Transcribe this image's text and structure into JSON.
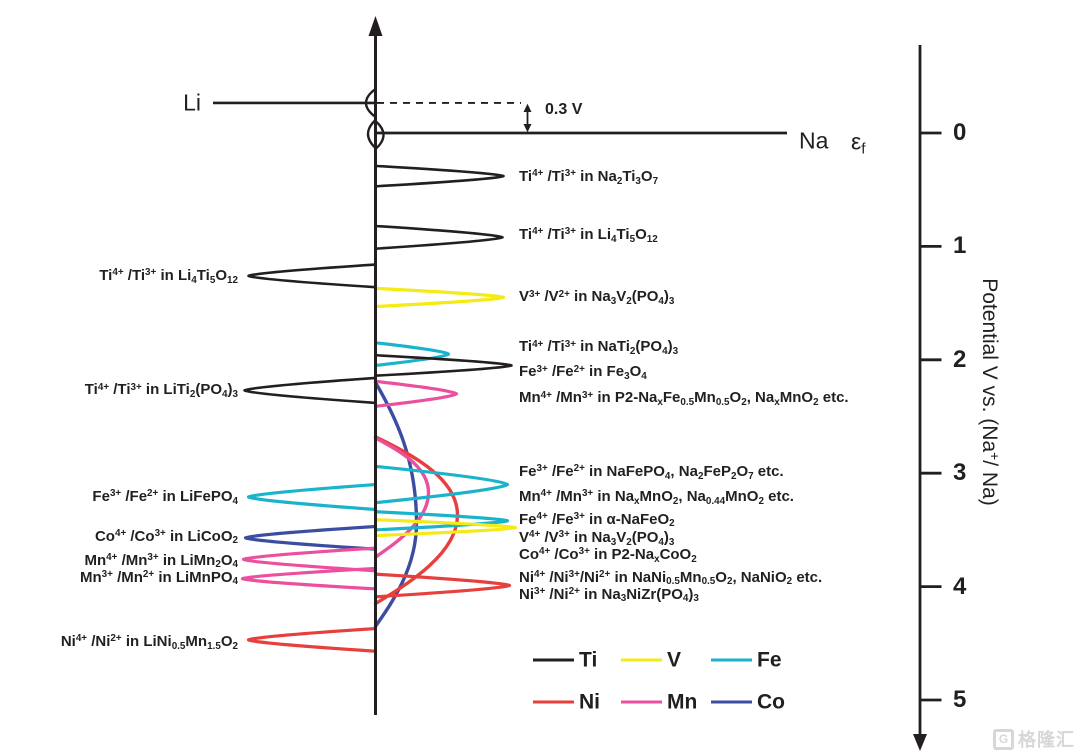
{
  "figure": {
    "anodes": {
      "li_label": "Li",
      "na_label": "Na",
      "fermi_label": "ε[f]",
      "offset_label": "0.3 V",
      "li_v": -0.265,
      "na_v": 0
    },
    "right_axis": {
      "title": "Potential V vs. (Na{+}/ Na)",
      "ticks": [
        0,
        1,
        2,
        3,
        4,
        5
      ]
    },
    "colors": {
      "Ti": "#231f20",
      "V": "#f3eb13",
      "Fe": "#1ab3cc",
      "Ni": "#e73f3c",
      "Mn": "#ec4f9d",
      "Co": "#3c4da1"
    },
    "legend": {
      "rows": [
        [
          "Ti",
          "V",
          "Fe"
        ],
        [
          "Ni",
          "Mn",
          "Co"
        ]
      ]
    },
    "watermark": {
      "logo": "G",
      "text": "格隆汇"
    }
  },
  "chart_data": {
    "type": "line",
    "title": "Relative redox energy levels of electrode materials vs. potential",
    "ylabel": "Potential V vs. (Na+/Na)",
    "y_range": [
      0,
      5
    ],
    "y_direction": "down",
    "li_na_offset_V": 0.3,
    "legend_entries": [
      "Ti",
      "V",
      "Fe",
      "Ni",
      "Mn",
      "Co"
    ],
    "peaks": [
      {
        "side": "left",
        "element": "Ti",
        "v": 1.26,
        "hw": 0.1,
        "amp": 127
      },
      {
        "side": "left",
        "element": "Ti",
        "v": 2.27,
        "hw": 0.11,
        "amp": 131
      },
      {
        "side": "left",
        "element": "Fe",
        "v": 3.21,
        "hw": 0.11,
        "amp": 127
      },
      {
        "side": "left",
        "element": "Co",
        "v": 3.57,
        "hw": 0.1,
        "amp": 130
      },
      {
        "side": "left",
        "element": "Mn",
        "v": 3.76,
        "hw": 0.1,
        "amp": 132
      },
      {
        "side": "left",
        "element": "Mn",
        "v": 3.93,
        "hw": 0.09,
        "amp": 133
      },
      {
        "side": "left",
        "element": "Ni",
        "v": 4.47,
        "hw": 0.1,
        "amp": 127
      },
      {
        "side": "right",
        "element": "Ti",
        "v": 0.38,
        "hw": 0.09,
        "amp": 128
      },
      {
        "side": "right",
        "element": "Ti",
        "v": 0.92,
        "hw": 0.1,
        "amp": 127
      },
      {
        "side": "right",
        "element": "V",
        "v": 1.45,
        "hw": 0.08,
        "amp": 128
      },
      {
        "side": "right",
        "element": "Fe",
        "v": 1.95,
        "hw": 0.1,
        "amp": 73
      },
      {
        "side": "right",
        "element": "Ti",
        "v": 2.05,
        "hw": 0.09,
        "amp": 136
      },
      {
        "side": "right",
        "element": "Mn",
        "v": 2.3,
        "hw": 0.11,
        "amp": 81
      },
      {
        "side": "right",
        "element": "Fe",
        "v": 3.1,
        "hw": 0.16,
        "amp": 132
      },
      {
        "side": "right",
        "element": "Fe",
        "v": 3.42,
        "hw": 0.08,
        "amp": 132
      },
      {
        "side": "right",
        "element": "V",
        "v": 3.48,
        "hw": 0.07,
        "amp": 140
      },
      {
        "side": "right",
        "element": "Ni",
        "v": 3.99,
        "hw": 0.1,
        "amp": 134
      }
    ],
    "broad_lobes": [
      {
        "side": "right",
        "element": "Co",
        "v_top": 2.2,
        "v_bulge": 3.44,
        "v_bot": 4.35,
        "amp": 41
      },
      {
        "side": "right",
        "element": "Ni",
        "v_top": 2.68,
        "v_bulge": 3.37,
        "v_bot": 4.15,
        "amp": 82
      },
      {
        "side": "right",
        "element": "Mn",
        "v_top": 2.69,
        "v_bulge": 3.17,
        "v_bot": 3.74,
        "amp": 53
      }
    ],
    "labels_left": [
      {
        "v": 1.26,
        "text": "Ti{4+} /Ti{3+} in Li[4]Ti[5]O[12]"
      },
      {
        "v": 2.27,
        "text": "Ti{4+} /Ti{3+} in LiTi[2](PO[4])[3]"
      },
      {
        "v": 3.21,
        "text": "Fe{3+} /Fe{2+} in LiFePO[4]"
      },
      {
        "v": 3.56,
        "text": "Co{4+} /Co{3+} in LiCoO[2]"
      },
      {
        "v": 3.77,
        "text": "Mn{4+} /Mn{3+} in LiMn[2]O[4]"
      },
      {
        "v": 3.92,
        "text": "Mn{3+} /Mn{2+} in LiMnPO[4]"
      },
      {
        "v": 4.49,
        "text": "Ni{4+} /Ni{2+} in LiNi[0.5]Mn[1.5]O[2]"
      }
    ],
    "labels_right": [
      {
        "v": 0.39,
        "text": "Ti{4+} /Ti{3+} in Na[2]Ti[3]O[7]"
      },
      {
        "v": 0.9,
        "text": "Ti{4+} /Ti{3+} in Li[4]Ti[5]O[12]"
      },
      {
        "v": 1.45,
        "text": "V{3+} /V{2+} in Na[3]V[2](PO[4])[3]"
      },
      {
        "v": 1.89,
        "text": "Ti{4+} /Ti{3+} in NaTi[2](PO[4])[3]"
      },
      {
        "v": 2.11,
        "text": "Fe{3+} /Fe{2+} in Fe[3]O[4]"
      },
      {
        "v": 2.34,
        "text": "Mn{4+} /Mn{3+} in P2-Na[x]Fe[0.5]Mn[0.5]O[2], Na[x]MnO[2] etc."
      },
      {
        "v": 2.99,
        "text": "Fe{3+} /Fe{2+} in NaFePO[4], Na[2]FeP[2]O[7] etc."
      },
      {
        "v": 3.21,
        "text": "Mn{4+} /Mn{3+} in Na[x]MnO[2], Na[0.44]MnO[2] etc."
      },
      {
        "v": 3.41,
        "text": "Fe{4+} /Fe{3+} in α-NaFeO[2]"
      },
      {
        "v": 3.57,
        "text": "V{4+} /V{3+} in Na[3]V[2](PO[4])[3]"
      },
      {
        "v": 3.72,
        "text": "Co{4+} /Co{3+} in P2-Na[x]CoO[2]"
      },
      {
        "v": 3.92,
        "text": "Ni{4+} /Ni{3+}/Ni{2+} in NaNi[0.5]Mn[0.5]O[2], NaNiO[2] etc."
      },
      {
        "v": 4.07,
        "text": "Ni{3+} /Ni{2+} in Na[3]NiZr(PO[4])[3]"
      }
    ]
  }
}
